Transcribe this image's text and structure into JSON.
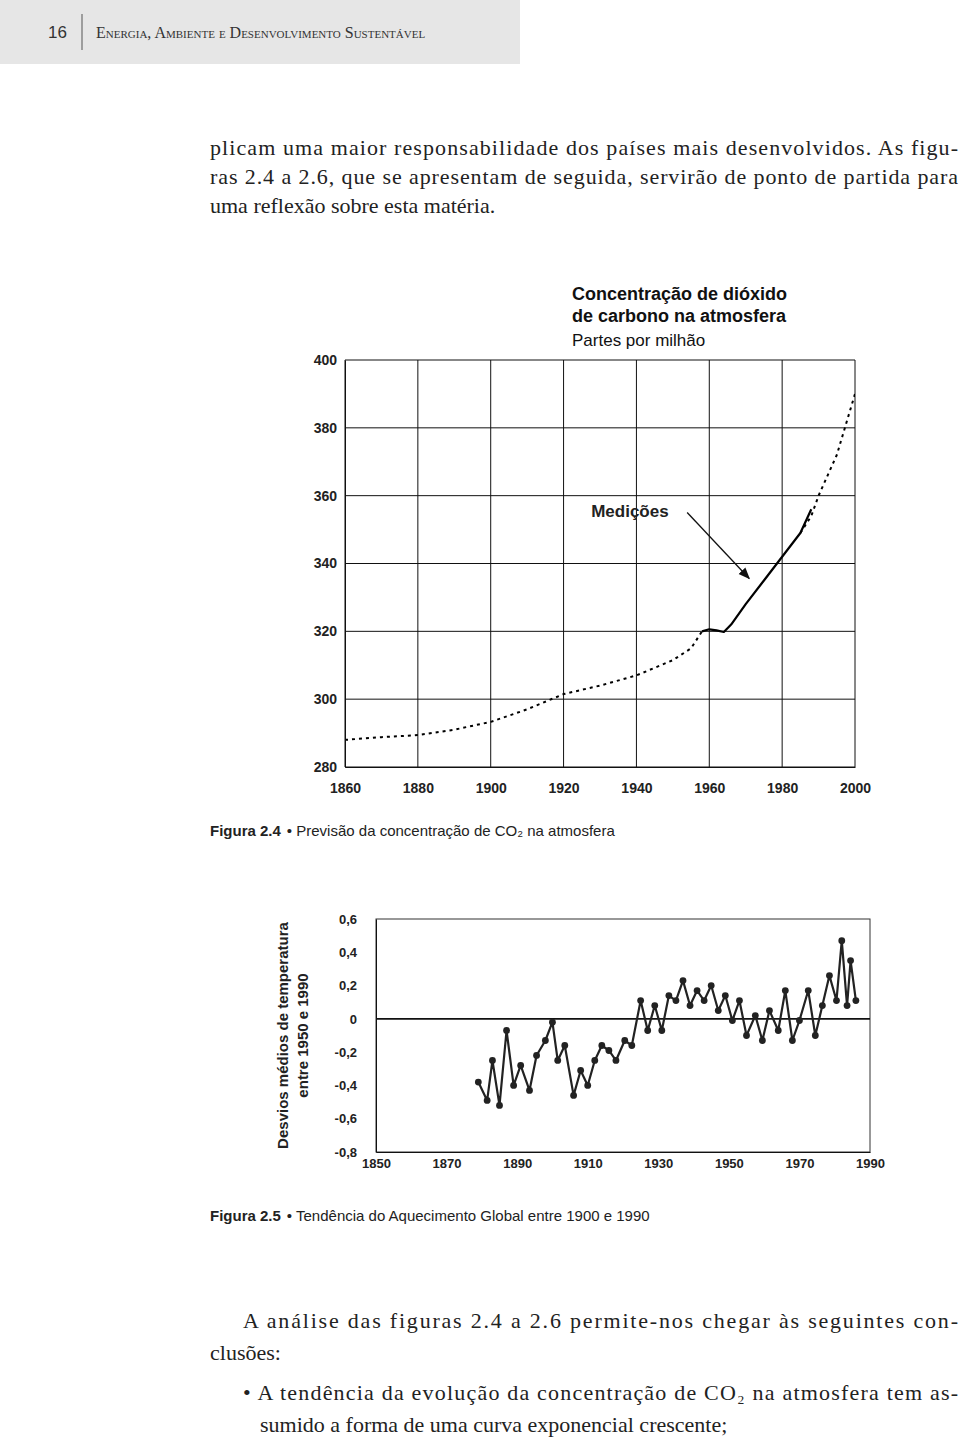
{
  "header": {
    "page": 16,
    "title": "Energia, Ambiente e Desenvolvimento Sustentável"
  },
  "intro": [
    "plicam uma maior responsabilidade dos países mais desenvolvidos. As figu-",
    "ras 2.4 a 2.6, que se apresentam de seguida, servirão de ponto de partida para",
    "uma reflexão sobre esta matéria."
  ],
  "chart_data": [
    {
      "type": "line",
      "title": [
        "Concentração de dióxido",
        "de carbono na atmosfera"
      ],
      "subtitle": "Partes por milhão",
      "x": [
        1860,
        1870,
        1880,
        1890,
        1900,
        1910,
        1920,
        1930,
        1940,
        1950,
        1955,
        1958,
        1960,
        1962,
        1964,
        1966,
        1970,
        1975,
        1980,
        1985,
        1988,
        1990,
        1995,
        2000
      ],
      "series": [
        {
          "color": "#000000",
          "line_style": "dotted",
          "values": [
            288,
            288.8,
            289.4,
            291,
            293.3,
            297,
            301.5,
            304,
            307,
            311.5,
            315,
            320,
            null,
            null,
            null,
            null,
            null,
            null,
            null,
            null,
            null,
            null,
            null,
            null
          ]
        },
        {
          "color": "#000000",
          "line_style": "solid",
          "values": [
            null,
            null,
            null,
            null,
            null,
            null,
            null,
            null,
            null,
            null,
            null,
            320,
            320.6,
            320.3,
            319.8,
            322,
            328,
            335,
            342,
            349,
            356,
            null,
            null,
            null
          ]
        },
        {
          "color": "#000000",
          "line_style": "dotted",
          "values": [
            null,
            null,
            null,
            null,
            null,
            null,
            null,
            null,
            null,
            null,
            null,
            null,
            null,
            null,
            null,
            null,
            null,
            null,
            null,
            349,
            354,
            360,
            372,
            390
          ]
        }
      ],
      "xlim": [
        1860,
        2000
      ],
      "xticks": [
        1860,
        1880,
        1900,
        1920,
        1940,
        1960,
        1980,
        2000
      ],
      "ylim": [
        280,
        400
      ],
      "yticks": [
        280,
        300,
        320,
        340,
        360,
        380,
        400
      ],
      "grid": true,
      "annotations": [
        {
          "text": "Medições",
          "x": 1971.5,
          "y": 335
        }
      ]
    },
    {
      "type": "line",
      "y_label": [
        "Desvios médios de temperatura",
        "entre 1950 e 1990"
      ],
      "x": [
        1879,
        1881.5,
        1883,
        1885,
        1887,
        1889,
        1891,
        1893.5,
        1895.5,
        1898,
        1900,
        1901.5,
        1903.5,
        1906,
        1908,
        1910,
        1912,
        1914,
        1916,
        1918,
        1920.5,
        1922.5,
        1925,
        1927,
        1929,
        1931,
        1933,
        1935,
        1937,
        1939,
        1941,
        1943,
        1945,
        1947,
        1949,
        1951,
        1953,
        1955,
        1957.5,
        1959.5,
        1961.5,
        1964,
        1966,
        1968,
        1970,
        1972.5,
        1974.5,
        1976.5,
        1978.5,
        1980.5,
        1982,
        1983.5,
        1984.5,
        1986
      ],
      "series": [
        {
          "color": "#222222",
          "line_style": "solid",
          "marker": "circle",
          "values": [
            -0.38,
            -0.49,
            -0.25,
            -0.52,
            -0.07,
            -0.4,
            -0.28,
            -0.43,
            -0.22,
            -0.13,
            -0.02,
            -0.25,
            -0.16,
            -0.46,
            -0.31,
            -0.4,
            -0.25,
            -0.16,
            -0.19,
            -0.25,
            -0.13,
            -0.16,
            0.11,
            -0.07,
            0.08,
            -0.07,
            0.14,
            0.11,
            0.23,
            0.08,
            0.17,
            0.11,
            0.2,
            0.05,
            0.14,
            -0.01,
            0.11,
            -0.1,
            0.02,
            -0.13,
            0.05,
            -0.07,
            0.17,
            -0.13,
            -0.01,
            0.17,
            -0.1,
            0.08,
            0.26,
            0.11,
            0.47,
            0.08,
            0.35,
            0.11
          ]
        }
      ],
      "xlim": [
        1850,
        1990
      ],
      "xticks": [
        1850,
        1870,
        1890,
        1910,
        1930,
        1950,
        1970,
        1990
      ],
      "ylim": [
        -0.8,
        0.6
      ],
      "yticks": [
        {
          "value": 0.6,
          "label": "0,6"
        },
        {
          "value": 0.4,
          "label": "0,4"
        },
        {
          "value": 0.2,
          "label": "0,2"
        },
        0,
        {
          "value": -0.2,
          "label": "-0,2"
        },
        {
          "value": -0.4,
          "label": "-0,4"
        },
        {
          "value": -0.6,
          "label": "-0,6"
        },
        {
          "value": -0.8,
          "label": "-0,8"
        }
      ],
      "grid": false,
      "reference_line": {
        "y": 0
      }
    }
  ],
  "captions": [
    {
      "label": "Figura 2.4",
      "text": "• Previsão da concentração de CO₂ na atmosfera"
    },
    {
      "label": "Figura 2.5",
      "text": "• Tendência do Aquecimento Global entre 1900 e 1990"
    }
  ],
  "conclusion_intro": [
    "A análise das figuras 2.4 a 2.6 permite-nos chegar às seguintes con-",
    "clusões:"
  ],
  "bullets": [
    [
      "• A tendência da evolução da concentração de CO₂ na atmosfera tem as-",
      "sumido a forma de uma curva exponencial crescente;"
    ]
  ]
}
